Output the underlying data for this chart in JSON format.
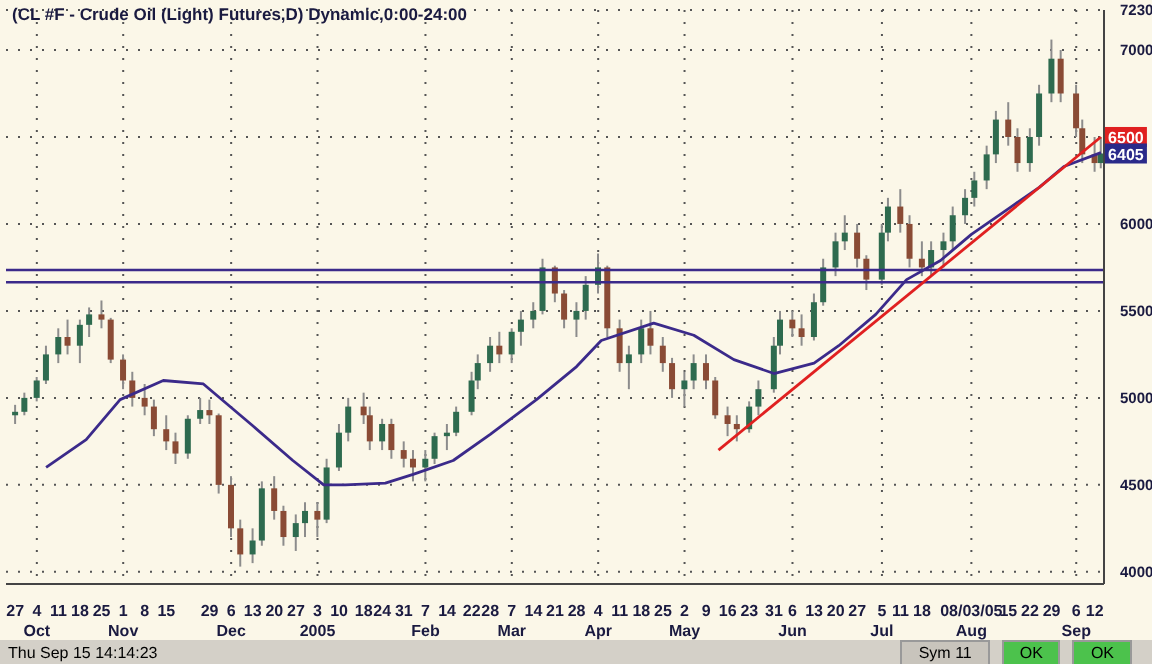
{
  "chart_data": {
    "type": "candlestick",
    "title": "(CL #F - Crude Oil (Light) Futures,D) Dynamic,0:00-24:00",
    "x": [
      "2004-09-27",
      "2004-09-30",
      "2004-10-04",
      "2004-10-07",
      "2004-10-11",
      "2004-10-14",
      "2004-10-18",
      "2004-10-21",
      "2004-10-25",
      "2004-10-28",
      "2004-11-01",
      "2004-11-04",
      "2004-11-08",
      "2004-11-11",
      "2004-11-15",
      "2004-11-18",
      "2004-11-22",
      "2004-11-26",
      "2004-11-29",
      "2004-12-02",
      "2004-12-06",
      "2004-12-09",
      "2004-12-13",
      "2004-12-16",
      "2004-12-20",
      "2004-12-23",
      "2004-12-27",
      "2004-12-30",
      "2005-01-03",
      "2005-01-06",
      "2005-01-10",
      "2005-01-13",
      "2005-01-18",
      "2005-01-20",
      "2005-01-24",
      "2005-01-27",
      "2005-01-31",
      "2005-02-03",
      "2005-02-07",
      "2005-02-10",
      "2005-02-14",
      "2005-02-17",
      "2005-02-22",
      "2005-02-24",
      "2005-02-28",
      "2005-03-03",
      "2005-03-07",
      "2005-03-10",
      "2005-03-14",
      "2005-03-17",
      "2005-03-21",
      "2005-03-24",
      "2005-03-28",
      "2005-03-31",
      "2005-04-04",
      "2005-04-07",
      "2005-04-11",
      "2005-04-14",
      "2005-04-18",
      "2005-04-21",
      "2005-04-25",
      "2005-04-28",
      "2005-05-02",
      "2005-05-05",
      "2005-05-09",
      "2005-05-12",
      "2005-05-16",
      "2005-05-19",
      "2005-05-23",
      "2005-05-26",
      "2005-05-31",
      "2005-06-02",
      "2005-06-06",
      "2005-06-09",
      "2005-06-13",
      "2005-06-16",
      "2005-06-20",
      "2005-06-23",
      "2005-06-27",
      "2005-06-30",
      "2005-07-05",
      "2005-07-07",
      "2005-07-11",
      "2005-07-14",
      "2005-07-18",
      "2005-07-21",
      "2005-07-25",
      "2005-07-28",
      "2005-08-01",
      "2005-08-04",
      "2005-08-08",
      "2005-08-11",
      "2005-08-15",
      "2005-08-18",
      "2005-08-22",
      "2005-08-25",
      "2005-08-29",
      "2005-09-01",
      "2005-09-06",
      "2005-09-08",
      "2005-09-12",
      "2005-09-14"
    ],
    "ohlc": [
      [
        4900,
        4960,
        4850,
        4920
      ],
      [
        4920,
        5030,
        4900,
        5000
      ],
      [
        5000,
        5120,
        4980,
        5100
      ],
      [
        5100,
        5300,
        5080,
        5250
      ],
      [
        5250,
        5400,
        5200,
        5350
      ],
      [
        5350,
        5450,
        5250,
        5300
      ],
      [
        5300,
        5450,
        5200,
        5420
      ],
      [
        5420,
        5520,
        5350,
        5480
      ],
      [
        5480,
        5560,
        5400,
        5450
      ],
      [
        5450,
        5460,
        5200,
        5220
      ],
      [
        5220,
        5250,
        5050,
        5100
      ],
      [
        5100,
        5150,
        4950,
        5000
      ],
      [
        5000,
        5080,
        4900,
        4950
      ],
      [
        4950,
        4990,
        4780,
        4820
      ],
      [
        4820,
        4900,
        4700,
        4750
      ],
      [
        4750,
        4800,
        4620,
        4680
      ],
      [
        4680,
        4900,
        4650,
        4880
      ],
      [
        4880,
        5000,
        4850,
        4930
      ],
      [
        4930,
        4990,
        4850,
        4900
      ],
      [
        4900,
        4910,
        4450,
        4500
      ],
      [
        4500,
        4550,
        4200,
        4250
      ],
      [
        4250,
        4300,
        4030,
        4100
      ],
      [
        4100,
        4250,
        4050,
        4180
      ],
      [
        4180,
        4520,
        4150,
        4480
      ],
      [
        4480,
        4550,
        4300,
        4350
      ],
      [
        4350,
        4380,
        4150,
        4200
      ],
      [
        4200,
        4330,
        4120,
        4280
      ],
      [
        4280,
        4400,
        4200,
        4350
      ],
      [
        4350,
        4400,
        4200,
        4300
      ],
      [
        4300,
        4650,
        4280,
        4600
      ],
      [
        4600,
        4850,
        4580,
        4800
      ],
      [
        4800,
        5000,
        4750,
        4950
      ],
      [
        4950,
        5030,
        4850,
        4900
      ],
      [
        4900,
        4950,
        4700,
        4750
      ],
      [
        4750,
        4880,
        4700,
        4850
      ],
      [
        4850,
        4880,
        4650,
        4700
      ],
      [
        4700,
        4750,
        4600,
        4650
      ],
      [
        4650,
        4700,
        4520,
        4600
      ],
      [
        4600,
        4700,
        4520,
        4650
      ],
      [
        4650,
        4800,
        4620,
        4780
      ],
      [
        4780,
        4850,
        4700,
        4800
      ],
      [
        4800,
        4950,
        4780,
        4920
      ],
      [
        4920,
        5150,
        4900,
        5100
      ],
      [
        5100,
        5250,
        5050,
        5200
      ],
      [
        5200,
        5350,
        5150,
        5300
      ],
      [
        5300,
        5380,
        5200,
        5250
      ],
      [
        5250,
        5400,
        5200,
        5380
      ],
      [
        5380,
        5500,
        5300,
        5450
      ],
      [
        5450,
        5550,
        5400,
        5500
      ],
      [
        5500,
        5800,
        5480,
        5750
      ],
      [
        5750,
        5760,
        5550,
        5600
      ],
      [
        5600,
        5620,
        5400,
        5450
      ],
      [
        5450,
        5550,
        5350,
        5500
      ],
      [
        5500,
        5700,
        5450,
        5650
      ],
      [
        5650,
        5830,
        5600,
        5750
      ],
      [
        5750,
        5760,
        5350,
        5400
      ],
      [
        5400,
        5450,
        5150,
        5200
      ],
      [
        5200,
        5300,
        5050,
        5250
      ],
      [
        5250,
        5450,
        5200,
        5400
      ],
      [
        5400,
        5500,
        5250,
        5300
      ],
      [
        5300,
        5350,
        5150,
        5200
      ],
      [
        5200,
        5230,
        5000,
        5050
      ],
      [
        5050,
        5150,
        4950,
        5100
      ],
      [
        5100,
        5250,
        5050,
        5200
      ],
      [
        5200,
        5250,
        5050,
        5100
      ],
      [
        5100,
        5120,
        4880,
        4900
      ],
      [
        4900,
        4950,
        4780,
        4850
      ],
      [
        4850,
        4900,
        4750,
        4820
      ],
      [
        4820,
        4980,
        4800,
        4950
      ],
      [
        4950,
        5100,
        4900,
        5050
      ],
      [
        5050,
        5350,
        5030,
        5300
      ],
      [
        5300,
        5500,
        5250,
        5450
      ],
      [
        5450,
        5500,
        5350,
        5400
      ],
      [
        5400,
        5480,
        5300,
        5350
      ],
      [
        5350,
        5600,
        5330,
        5550
      ],
      [
        5550,
        5800,
        5530,
        5750
      ],
      [
        5750,
        5950,
        5700,
        5900
      ],
      [
        5900,
        6050,
        5850,
        5950
      ],
      [
        5950,
        6000,
        5750,
        5800
      ],
      [
        5800,
        5820,
        5620,
        5680
      ],
      [
        5680,
        6000,
        5650,
        5950
      ],
      [
        5950,
        6150,
        5900,
        6100
      ],
      [
        6100,
        6200,
        5950,
        6000
      ],
      [
        6000,
        6050,
        5750,
        5800
      ],
      [
        5800,
        5900,
        5700,
        5750
      ],
      [
        5750,
        5900,
        5700,
        5850
      ],
      [
        5850,
        5950,
        5750,
        5900
      ],
      [
        5900,
        6100,
        5850,
        6050
      ],
      [
        6050,
        6200,
        6000,
        6150
      ],
      [
        6150,
        6300,
        6100,
        6250
      ],
      [
        6250,
        6450,
        6200,
        6400
      ],
      [
        6400,
        6650,
        6350,
        6600
      ],
      [
        6600,
        6700,
        6450,
        6500
      ],
      [
        6500,
        6550,
        6300,
        6350
      ],
      [
        6350,
        6550,
        6300,
        6500
      ],
      [
        6500,
        6800,
        6450,
        6750
      ],
      [
        6750,
        7060,
        6700,
        6950
      ],
      [
        6950,
        7000,
        6700,
        6750
      ],
      [
        6750,
        6800,
        6500,
        6550
      ],
      [
        6550,
        6600,
        6350,
        6400
      ],
      [
        6400,
        6500,
        6300,
        6350
      ],
      [
        6350,
        6500,
        6320,
        6405
      ]
    ],
    "series": [
      {
        "type": "line",
        "color": "#3b2a8a",
        "x": [
          "2004-10-07",
          "2004-10-20",
          "2004-10-31",
          "2004-11-14",
          "2004-11-27",
          "2004-12-13",
          "2004-12-26",
          "2005-01-05",
          "2005-01-12",
          "2005-01-25",
          "2005-02-03",
          "2005-02-16",
          "2005-02-28",
          "2005-03-15",
          "2005-03-28",
          "2005-04-05",
          "2005-04-22",
          "2005-05-05",
          "2005-05-18",
          "2005-05-31",
          "2005-06-13",
          "2005-06-21",
          "2005-07-03",
          "2005-07-13",
          "2005-07-24",
          "2005-08-03",
          "2005-08-16",
          "2005-08-25",
          "2005-09-02",
          "2005-09-14"
        ],
        "values": [
          4600,
          4760,
          4990,
          5100,
          5080,
          4840,
          4640,
          4500,
          4500,
          4510,
          4560,
          4640,
          4790,
          4990,
          5180,
          5330,
          5430,
          5360,
          5220,
          5140,
          5200,
          5300,
          5480,
          5680,
          5790,
          5940,
          6100,
          6210,
          6330,
          6410
        ]
      },
      {
        "type": "line",
        "color": "#e02020",
        "x": [
          "2005-05-13",
          "2005-09-14"
        ],
        "values": [
          4700,
          6500
        ]
      }
    ],
    "xlim": [
      "2004-09-24",
      "2005-09-15"
    ],
    "xticks": [
      {
        "value": "2004-09-27",
        "label": "27"
      },
      {
        "value": "2004-10-04",
        "label": "4\nOct"
      },
      {
        "value": "2004-10-11",
        "label": "11"
      },
      {
        "value": "2004-10-18",
        "label": "18"
      },
      {
        "value": "2004-10-25",
        "label": "25"
      },
      {
        "value": "2004-11-01",
        "label": "1\nNov"
      },
      {
        "value": "2004-11-08",
        "label": "8"
      },
      {
        "value": "2004-11-15",
        "label": "15"
      },
      {
        "value": "2004-11-29",
        "label": "29"
      },
      {
        "value": "2004-12-06",
        "label": "6\nDec"
      },
      {
        "value": "2004-12-13",
        "label": "13"
      },
      {
        "value": "2004-12-20",
        "label": "20"
      },
      {
        "value": "2004-12-27",
        "label": "27"
      },
      {
        "value": "2005-01-03",
        "label": "3\n2005"
      },
      {
        "value": "2005-01-10",
        "label": "10"
      },
      {
        "value": "2005-01-18",
        "label": "18"
      },
      {
        "value": "2005-01-24",
        "label": "24"
      },
      {
        "value": "2005-01-31",
        "label": "31"
      },
      {
        "value": "2005-02-07",
        "label": "7\nFeb"
      },
      {
        "value": "2005-02-14",
        "label": "14"
      },
      {
        "value": "2005-02-22",
        "label": "22"
      },
      {
        "value": "2005-02-28",
        "label": "28"
      },
      {
        "value": "2005-03-07",
        "label": "7\nMar"
      },
      {
        "value": "2005-03-14",
        "label": "14"
      },
      {
        "value": "2005-03-21",
        "label": "21"
      },
      {
        "value": "2005-03-28",
        "label": "28"
      },
      {
        "value": "2005-04-04",
        "label": "4\nApr"
      },
      {
        "value": "2005-04-11",
        "label": "11"
      },
      {
        "value": "2005-04-18",
        "label": "18"
      },
      {
        "value": "2005-04-25",
        "label": "25"
      },
      {
        "value": "2005-05-02",
        "label": "2\nMay"
      },
      {
        "value": "2005-05-09",
        "label": "9"
      },
      {
        "value": "2005-05-16",
        "label": "16"
      },
      {
        "value": "2005-05-23",
        "label": "23"
      },
      {
        "value": "2005-05-31",
        "label": "31"
      },
      {
        "value": "2005-06-06",
        "label": "6\nJun"
      },
      {
        "value": "2005-06-13",
        "label": "13"
      },
      {
        "value": "2005-06-20",
        "label": "20"
      },
      {
        "value": "2005-06-27",
        "label": "27"
      },
      {
        "value": "2005-07-05",
        "label": "5\nJul"
      },
      {
        "value": "2005-07-11",
        "label": "11"
      },
      {
        "value": "2005-07-18",
        "label": "18"
      },
      {
        "value": "2005-08-03",
        "label": "08/03/05\nAug"
      },
      {
        "value": "2005-08-15",
        "label": "15"
      },
      {
        "value": "2005-08-22",
        "label": "22"
      },
      {
        "value": "2005-08-29",
        "label": "29"
      },
      {
        "value": "2005-09-06",
        "label": "6\nSep"
      },
      {
        "value": "2005-09-12",
        "label": "12"
      }
    ],
    "ylim": [
      3930,
      7230
    ],
    "yticks": [
      4000,
      4500,
      5000,
      5500,
      6000,
      {
        "value": 6500,
        "label": null
      },
      7000,
      7230
    ],
    "grid": true,
    "ref_lines": [
      {
        "axis": "y",
        "value": 5735,
        "color": "#3b2a8a"
      },
      {
        "axis": "y",
        "value": 5665,
        "color": "#3b2a8a"
      }
    ],
    "annotations": [
      "Thu Sep 15 14:14:23",
      "Sym 11",
      "OK",
      "OK",
      {
        "text": "6500",
        "x": "2005-09-14",
        "y": 6500
      },
      {
        "text": "6405",
        "x": "2005-09-14",
        "y": 6405
      }
    ]
  }
}
